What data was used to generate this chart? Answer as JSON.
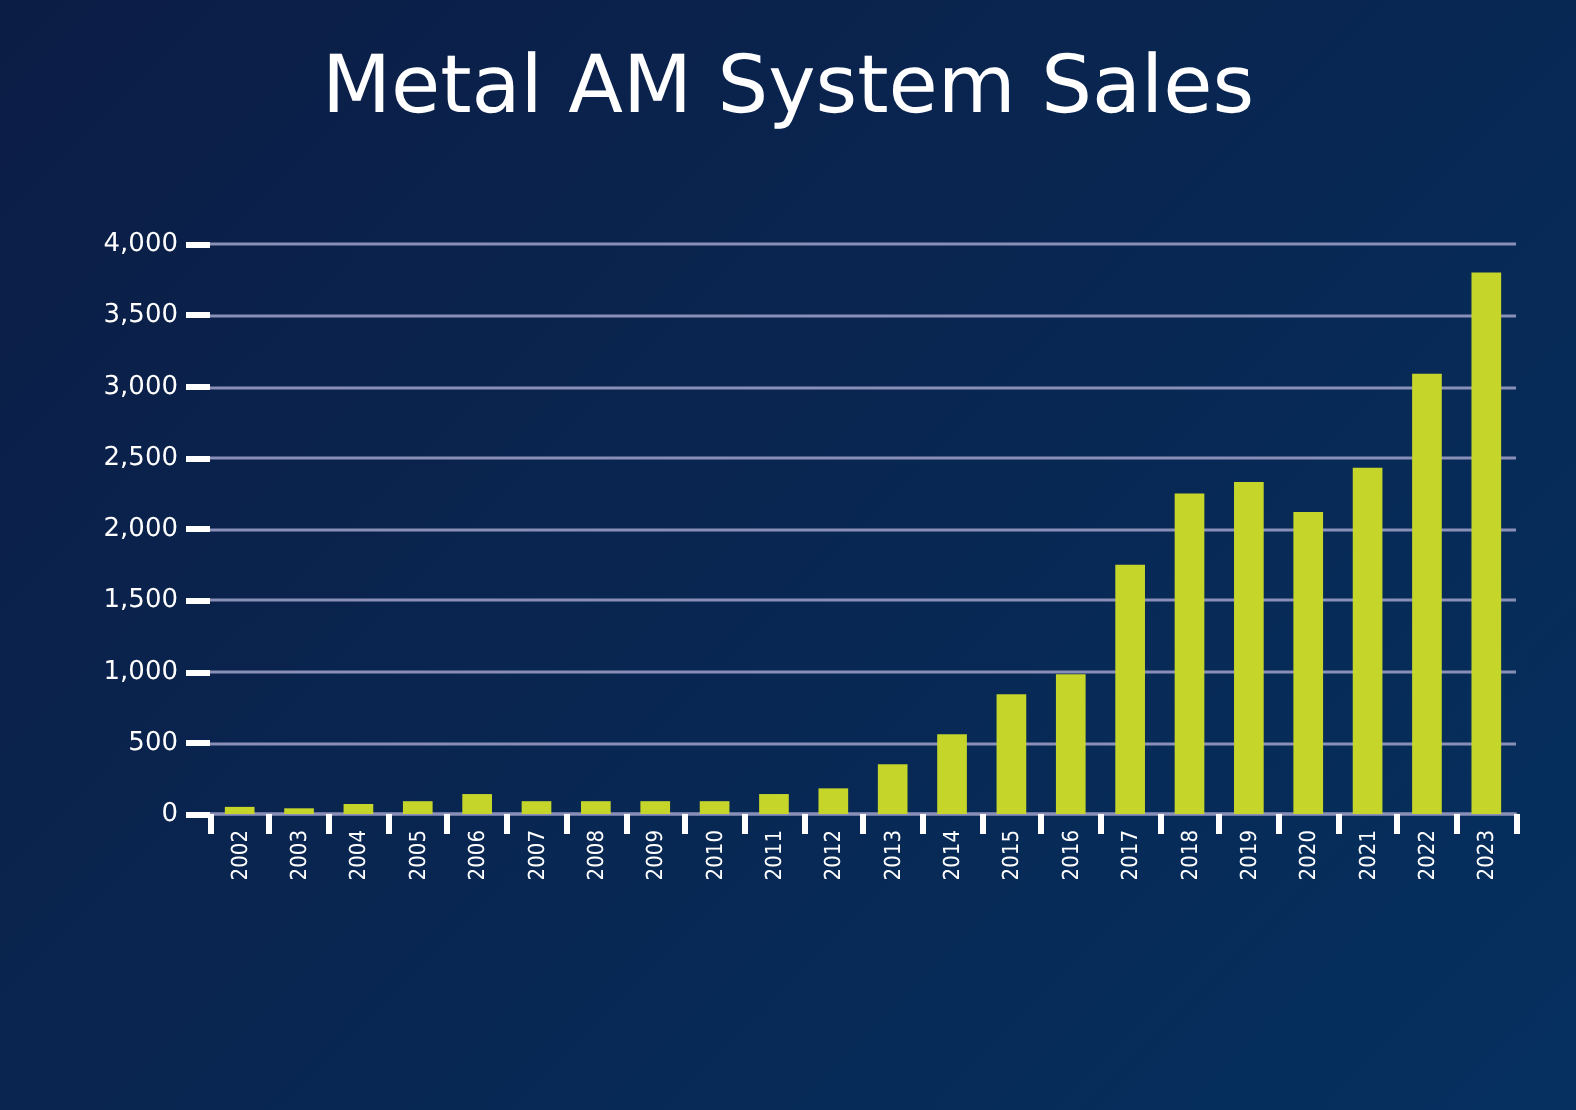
{
  "chart_data": {
    "type": "bar",
    "title": "Metal AM System Sales",
    "categories": [
      "2002",
      "2003",
      "2004",
      "2005",
      "2006",
      "2007",
      "2008",
      "2009",
      "2010",
      "2011",
      "2012",
      "2013",
      "2014",
      "2015",
      "2016",
      "2017",
      "2018",
      "2019",
      "2020",
      "2021",
      "2022",
      "2023"
    ],
    "values": [
      50,
      40,
      70,
      90,
      140,
      90,
      90,
      90,
      90,
      140,
      180,
      350,
      560,
      840,
      980,
      1750,
      2250,
      2330,
      2120,
      2430,
      3090,
      3800
    ],
    "color": "#c5d52a",
    "ylim": [
      0,
      4000
    ],
    "yticks": [
      {
        "value": 0,
        "label": "0"
      },
      {
        "value": 500,
        "label": "500"
      },
      {
        "value": 1000,
        "label": "1,000"
      },
      {
        "value": 1500,
        "label": "1,500"
      },
      {
        "value": 2000,
        "label": "2,000"
      },
      {
        "value": 2500,
        "label": "2,500"
      },
      {
        "value": 3000,
        "label": "3,000"
      },
      {
        "value": 3500,
        "label": "3,500"
      },
      {
        "value": 4000,
        "label": "4,000"
      }
    ],
    "grid": "y"
  }
}
